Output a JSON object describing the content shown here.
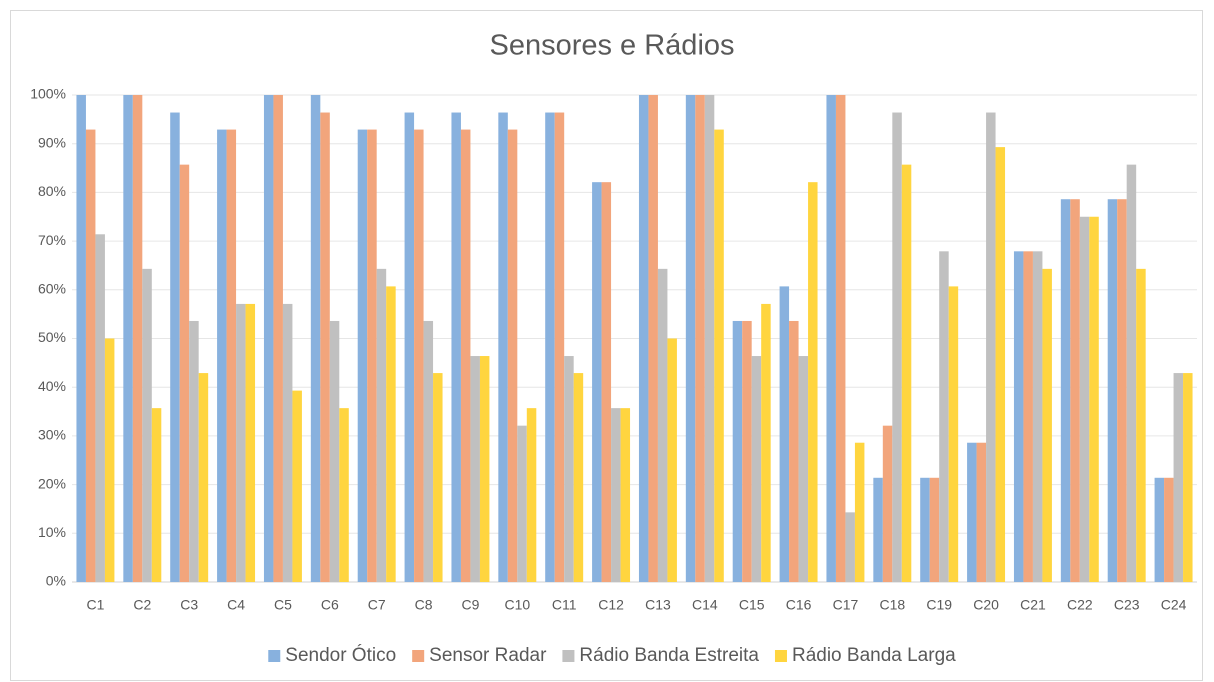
{
  "chart_data": {
    "type": "bar",
    "title": "Sensores e Rádios",
    "categories": [
      "C1",
      "C2",
      "C3",
      "C4",
      "C5",
      "C6",
      "C7",
      "C8",
      "C9",
      "C10",
      "C11",
      "C12",
      "C13",
      "C14",
      "C15",
      "C16",
      "C17",
      "C18",
      "C19",
      "C20",
      "C21",
      "C22",
      "C23",
      "C24"
    ],
    "series": [
      {
        "name": "Sendor Ótico",
        "color": "#88b1de",
        "values": [
          100,
          100,
          96.4,
          92.9,
          100,
          100,
          92.9,
          96.4,
          96.4,
          96.4,
          96.4,
          82.1,
          100,
          100,
          53.6,
          60.7,
          100,
          21.4,
          21.4,
          28.6,
          67.9,
          78.6,
          78.6,
          21.4
        ]
      },
      {
        "name": "Sensor Radar",
        "color": "#f2a57c",
        "values": [
          92.9,
          100,
          85.7,
          92.9,
          100,
          96.4,
          92.9,
          92.9,
          92.9,
          92.9,
          96.4,
          82.1,
          100,
          100,
          53.6,
          53.6,
          100,
          32.1,
          21.4,
          28.6,
          67.9,
          78.6,
          78.6,
          21.4
        ]
      },
      {
        "name": "Rádio Banda Estreita",
        "color": "#c0c0c0",
        "values": [
          71.4,
          64.3,
          53.6,
          57.1,
          57.1,
          53.6,
          64.3,
          53.6,
          46.4,
          32.1,
          46.4,
          35.7,
          64.3,
          100,
          46.4,
          46.4,
          14.3,
          96.4,
          67.9,
          96.4,
          67.9,
          75,
          85.7,
          42.9
        ]
      },
      {
        "name": "Rádio Banda Larga",
        "color": "#ffd53f",
        "values": [
          50,
          35.7,
          42.9,
          57.1,
          39.3,
          35.7,
          60.7,
          42.9,
          46.4,
          35.7,
          42.9,
          35.7,
          50,
          92.9,
          57.1,
          82.1,
          28.6,
          85.7,
          60.7,
          89.3,
          64.3,
          75,
          64.3,
          42.9
        ]
      }
    ],
    "ylim": [
      0,
      100
    ],
    "yticks": [
      {
        "value": 0,
        "label": "0%"
      },
      {
        "value": 10,
        "label": "10%"
      },
      {
        "value": 20,
        "label": "20%"
      },
      {
        "value": 30,
        "label": "30%"
      },
      {
        "value": 40,
        "label": "40%"
      },
      {
        "value": 50,
        "label": "50%"
      },
      {
        "value": 60,
        "label": "60%"
      },
      {
        "value": 70,
        "label": "70%"
      },
      {
        "value": 80,
        "label": "80%"
      },
      {
        "value": 90,
        "label": "90%"
      },
      {
        "value": 100,
        "label": "100%"
      }
    ],
    "grid": true,
    "legend": "bottom"
  }
}
